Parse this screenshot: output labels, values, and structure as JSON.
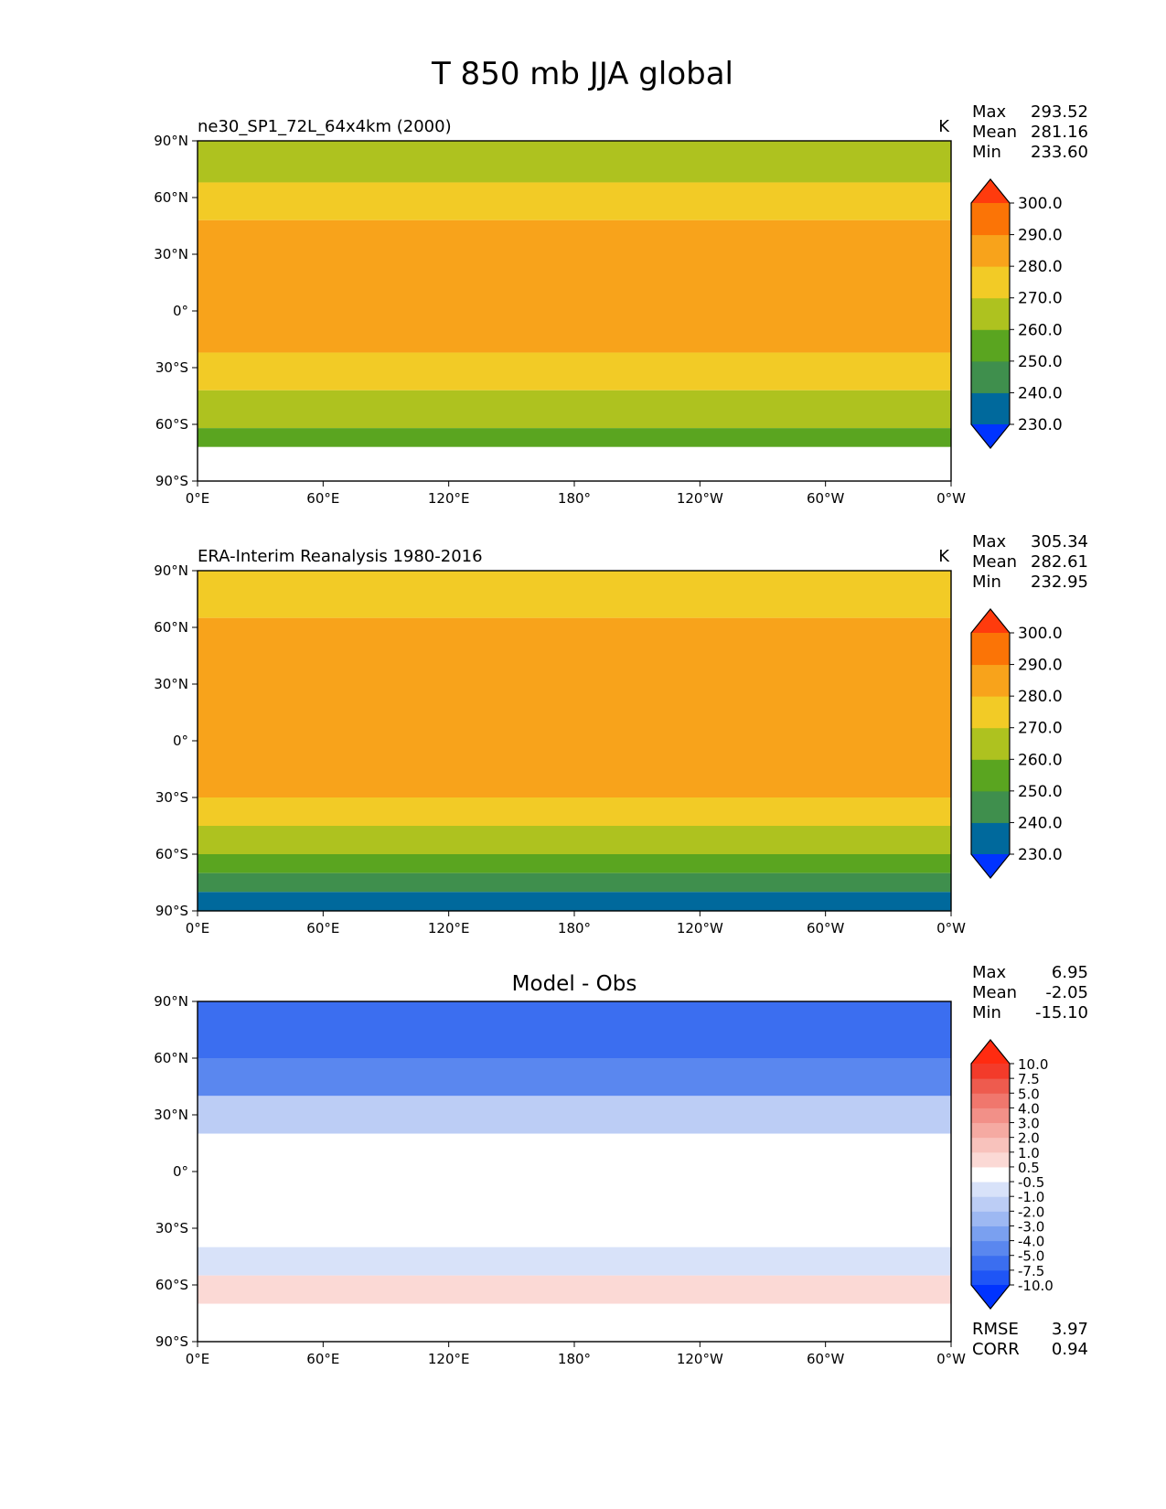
{
  "figure_title": "T 850 mb JJA global",
  "chart_data": [
    {
      "type": "heatmap",
      "title": "ne30_SP1_72L_64x4km (2000)",
      "units": "K",
      "stats": [
        {
          "label": "Max",
          "value": "293.52"
        },
        {
          "label": "Mean",
          "value": "281.16"
        },
        {
          "label": "Min",
          "value": "233.60"
        }
      ],
      "x_ticks": [
        "0°E",
        "60°E",
        "120°E",
        "180°",
        "120°W",
        "60°W",
        "0°W"
      ],
      "y_ticks": [
        "90°N",
        "60°N",
        "30°N",
        "0°",
        "30°S",
        "60°S",
        "90°S"
      ],
      "xlim": [
        0,
        360
      ],
      "ylim": [
        -90,
        90
      ],
      "colorbar": {
        "colors": [
          "#0033ff",
          "#00699c",
          "#3f8f4d",
          "#5aa520",
          "#aec21f",
          "#f2cb26",
          "#f8a31b",
          "#fb7406",
          "#ff3b0d"
        ],
        "labels": [
          "230.0",
          "240.0",
          "250.0",
          "260.0",
          "270.0",
          "280.0",
          "290.0",
          "300.0"
        ]
      },
      "bands": [
        {
          "lat_top": 90,
          "lat_bottom": 68,
          "color": "#aec21f"
        },
        {
          "lat_top": 68,
          "lat_bottom": 48,
          "color": "#f2cb26"
        },
        {
          "lat_top": 48,
          "lat_bottom": -22,
          "color": "#f8a31b"
        },
        {
          "lat_top": -22,
          "lat_bottom": -42,
          "color": "#f2cb26"
        },
        {
          "lat_top": -42,
          "lat_bottom": -62,
          "color": "#aec21f"
        },
        {
          "lat_top": -62,
          "lat_bottom": -72,
          "color": "#5aa520"
        },
        {
          "lat_top": -72,
          "lat_bottom": -90,
          "color": "#ffffff"
        }
      ]
    },
    {
      "type": "heatmap",
      "title": "ERA-Interim Reanalysis 1980-2016",
      "units": "K",
      "stats": [
        {
          "label": "Max",
          "value": "305.34"
        },
        {
          "label": "Mean",
          "value": "282.61"
        },
        {
          "label": "Min",
          "value": "232.95"
        }
      ],
      "x_ticks": [
        "0°E",
        "60°E",
        "120°E",
        "180°",
        "120°W",
        "60°W",
        "0°W"
      ],
      "y_ticks": [
        "90°N",
        "60°N",
        "30°N",
        "0°",
        "30°S",
        "60°S",
        "90°S"
      ],
      "xlim": [
        0,
        360
      ],
      "ylim": [
        -90,
        90
      ],
      "colorbar": {
        "colors": [
          "#0033ff",
          "#00699c",
          "#3f8f4d",
          "#5aa520",
          "#aec21f",
          "#f2cb26",
          "#f8a31b",
          "#fb7406",
          "#ff3b0d"
        ],
        "labels": [
          "230.0",
          "240.0",
          "250.0",
          "260.0",
          "270.0",
          "280.0",
          "290.0",
          "300.0"
        ]
      },
      "bands": [
        {
          "lat_top": 90,
          "lat_bottom": 65,
          "color": "#f2cb26"
        },
        {
          "lat_top": 65,
          "lat_bottom": -30,
          "color": "#f8a31b"
        },
        {
          "lat_top": -30,
          "lat_bottom": -45,
          "color": "#f2cb26"
        },
        {
          "lat_top": -45,
          "lat_bottom": -60,
          "color": "#aec21f"
        },
        {
          "lat_top": -60,
          "lat_bottom": -70,
          "color": "#5aa520"
        },
        {
          "lat_top": -70,
          "lat_bottom": -80,
          "color": "#3f8f4d"
        },
        {
          "lat_top": -80,
          "lat_bottom": -90,
          "color": "#00699c"
        }
      ]
    },
    {
      "type": "heatmap",
      "title": "Model - Obs",
      "units": "",
      "stats": [
        {
          "label": "Max",
          "value": "6.95"
        },
        {
          "label": "Mean",
          "value": "-2.05"
        },
        {
          "label": "Min",
          "value": "-15.10"
        }
      ],
      "x_ticks": [
        "0°E",
        "60°E",
        "120°E",
        "180°",
        "120°W",
        "60°W",
        "0°W"
      ],
      "y_ticks": [
        "90°N",
        "60°N",
        "30°N",
        "0°",
        "30°S",
        "60°S",
        "90°S"
      ],
      "xlim": [
        0,
        360
      ],
      "ylim": [
        -90,
        90
      ],
      "colorbar": {
        "colors": [
          "#0033ff",
          "#1f55f6",
          "#3b6ef0",
          "#5a87ef",
          "#7aa0f0",
          "#9db8f2",
          "#bccdf5",
          "#d8e2f9",
          "#ffffff",
          "#fbd9d5",
          "#f8c2bc",
          "#f5aaa2",
          "#f29088",
          "#f0776d",
          "#ee5b4e",
          "#f33b2a",
          "#ff2b10"
        ],
        "labels": [
          "-10.0",
          "-7.5",
          "-5.0",
          "-4.0",
          "-3.0",
          "-2.0",
          "-1.0",
          "-0.5",
          "0.5",
          "1.0",
          "2.0",
          "3.0",
          "4.0",
          "5.0",
          "7.5",
          "10.0"
        ]
      },
      "bands": [
        {
          "lat_top": 90,
          "lat_bottom": 60,
          "color": "#3b6ef0"
        },
        {
          "lat_top": 60,
          "lat_bottom": 40,
          "color": "#5a87ef"
        },
        {
          "lat_top": 40,
          "lat_bottom": 20,
          "color": "#bccdf5"
        },
        {
          "lat_top": 20,
          "lat_bottom": -20,
          "color": "#ffffff"
        },
        {
          "lat_top": -20,
          "lat_bottom": -40,
          "color": "#ffffff"
        },
        {
          "lat_top": -40,
          "lat_bottom": -55,
          "color": "#d8e2f9"
        },
        {
          "lat_top": -55,
          "lat_bottom": -70,
          "color": "#fbd9d5"
        },
        {
          "lat_top": -70,
          "lat_bottom": -90,
          "color": "#ffffff"
        }
      ],
      "footer": [
        {
          "label": "RMSE",
          "value": "3.97"
        },
        {
          "label": "CORR",
          "value": "0.94"
        }
      ]
    }
  ]
}
